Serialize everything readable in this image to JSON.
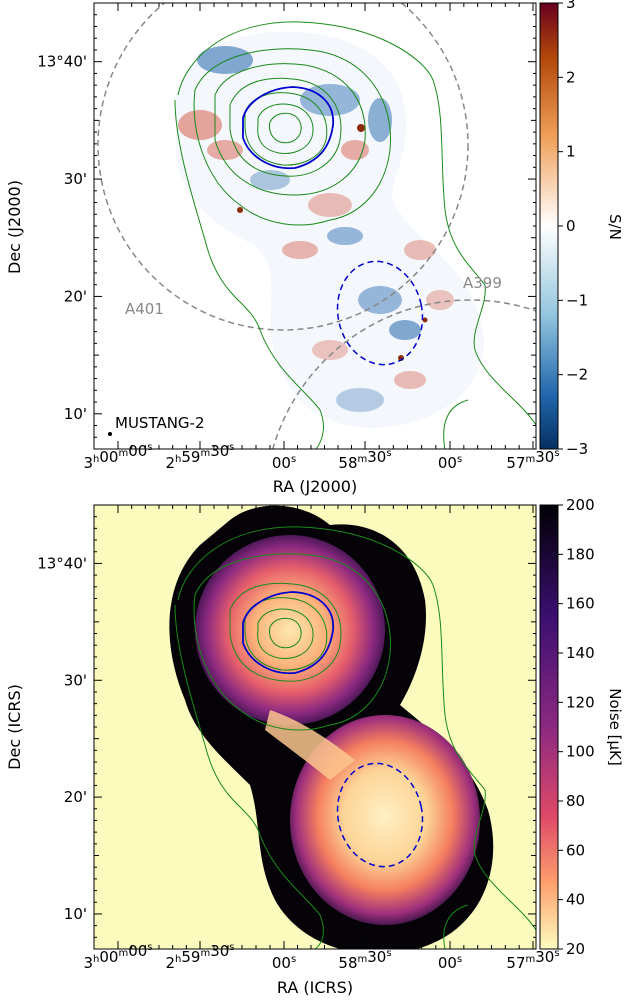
{
  "chart_data": [
    {
      "type": "heatmap",
      "xlabel": "RA (J2000)",
      "ylabel": "Dec (J2000)",
      "x_ticks": [
        {
          "h": "3",
          "m": "00",
          "s": "00"
        },
        {
          "h": "2",
          "m": "59",
          "s": "30"
        },
        {
          "h": "",
          "m": "",
          "s": "00"
        },
        {
          "h": "",
          "m": "58",
          "s": "30"
        },
        {
          "h": "",
          "m": "",
          "s": "00"
        },
        {
          "h": "",
          "m": "57",
          "s": "30"
        }
      ],
      "y_ticks": [
        "13°40'",
        "30'",
        "20'",
        "10'"
      ],
      "y_range_arcmin": [
        7,
        45
      ],
      "colorbar": {
        "label": "S/N",
        "ticks": [
          "3",
          "2",
          "1",
          "0",
          "−1",
          "−2",
          "−3"
        ],
        "range": [
          -3,
          3
        ],
        "colormap": "RdBu_r"
      },
      "annotations": [
        "A401",
        "A399",
        "MUSTANG-2"
      ],
      "colors": {
        "contour": "#1a8a1a",
        "cluster_region": "#0000cc",
        "circle": "#888888",
        "positive": "#b2470a",
        "negative": "#2166ac"
      }
    },
    {
      "type": "heatmap",
      "xlabel": "RA (ICRS)",
      "ylabel": "Dec (ICRS)",
      "x_ticks": [
        {
          "h": "3",
          "m": "00",
          "s": "00"
        },
        {
          "h": "2",
          "m": "59",
          "s": "30"
        },
        {
          "h": "",
          "m": "",
          "s": "00"
        },
        {
          "h": "",
          "m": "58",
          "s": "30"
        },
        {
          "h": "",
          "m": "",
          "s": "00"
        },
        {
          "h": "",
          "m": "57",
          "s": "30"
        }
      ],
      "y_ticks": [
        "13°40'",
        "30'",
        "20'",
        "10'"
      ],
      "y_range_arcmin": [
        7,
        45
      ],
      "colorbar": {
        "label": "Noise [μK]",
        "ticks": [
          "200",
          "180",
          "160",
          "140",
          "120",
          "100",
          "80",
          "60",
          "40",
          "20"
        ],
        "range": [
          20,
          200
        ],
        "colormap": "magma_r"
      },
      "colors": {
        "background": "#fbfbbe",
        "contour": "#1a8a1a",
        "cluster_region": "#0000cc"
      }
    }
  ]
}
